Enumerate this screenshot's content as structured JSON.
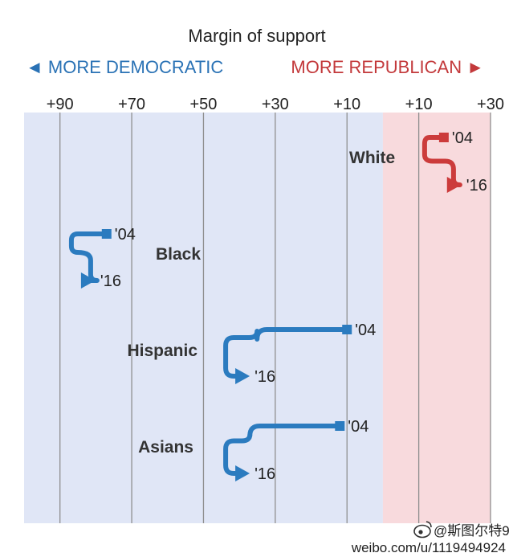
{
  "chart_data": {
    "type": "line",
    "title": "Margin of support",
    "direction_labels": {
      "left": "◄ MORE DEMOCRATIC",
      "right": "MORE REPUBLICAN ►"
    },
    "xlim": [
      100,
      -30
    ],
    "x_ticks": [
      {
        "value": 90,
        "label": "+90"
      },
      {
        "value": 70,
        "label": "+70"
      },
      {
        "value": 50,
        "label": "+50"
      },
      {
        "value": 30,
        "label": "+30"
      },
      {
        "value": 10,
        "label": "+10"
      },
      {
        "value": -10,
        "label": "+10"
      },
      {
        "value": -30,
        "label": "+30"
      }
    ],
    "series": [
      {
        "name": "White",
        "party": "rep",
        "x_2004": -17,
        "x_2016": -21
      },
      {
        "name": "Black",
        "party": "dem",
        "x_2004": 77,
        "x_2016": 81
      },
      {
        "name": "Hispanic",
        "party": "dem",
        "x_2004": 10,
        "x_2016": 38
      },
      {
        "name": "Asians",
        "party": "dem",
        "x_2004": 12,
        "x_2016": 38
      }
    ],
    "year_labels": {
      "start": "'04",
      "end": "'16"
    },
    "grid": true,
    "colors": {
      "democratic": "#2b7bbf",
      "republican": "#cc3b3b",
      "dem_background": "#e0e6f6",
      "rep_background": "#f8dadd",
      "dem_label": "#2a72b5",
      "rep_label": "#c3393b"
    }
  },
  "watermark": {
    "handle": "@斯图尔特9",
    "url": "weibo.com/u/1119494924"
  }
}
